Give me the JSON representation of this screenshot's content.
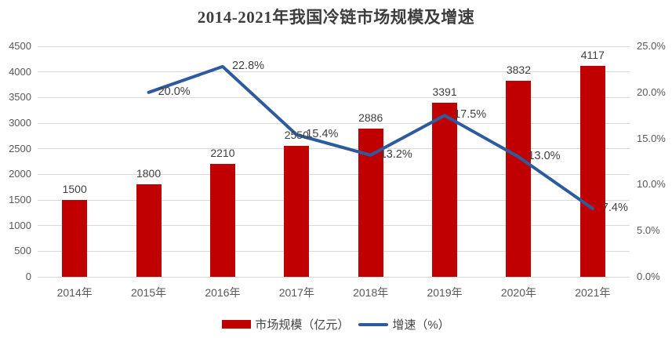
{
  "title": "2014-2021年我国冷链市场规模及增速",
  "colors": {
    "bar": "#c00000",
    "line": "#2e5b9e",
    "gridline": "#d9d9d9",
    "axis_text": "#595959",
    "label_text": "#404040",
    "title_text": "#3d3d3d",
    "background": "#ffffff"
  },
  "legend": {
    "position": "bottom",
    "items": [
      {
        "label": "市场规模（亿元）",
        "marker": "bar-swatch",
        "color": "#c00000"
      },
      {
        "label": "增速（%）",
        "marker": "line-swatch",
        "color": "#2e5b9e"
      }
    ]
  },
  "chart_data": {
    "type": "bar+line combo",
    "title": "2014-2021年我国冷链市场规模及增速",
    "categories": [
      "2014年",
      "2015年",
      "2016年",
      "2017年",
      "2018年",
      "2019年",
      "2020年",
      "2021年"
    ],
    "series": [
      {
        "name": "市场规模（亿元）",
        "type": "bar",
        "axis": "left",
        "color": "#c00000",
        "values": [
          1500,
          1800,
          2210,
          2550,
          2886,
          3391,
          3832,
          4117
        ],
        "labels": [
          "1500",
          "1800",
          "2210",
          "2550",
          "2886",
          "3391",
          "3832",
          "4117"
        ]
      },
      {
        "name": "增速（%）",
        "type": "line",
        "axis": "right",
        "color": "#2e5b9e",
        "values": [
          null,
          20.0,
          22.8,
          15.4,
          13.2,
          17.5,
          13.0,
          7.4
        ],
        "labels": [
          null,
          "20.0%",
          "22.8%",
          "15.4%",
          "13.2%",
          "17.5%",
          "13.0%",
          "7.4%"
        ]
      }
    ],
    "left_axis": {
      "min": 0,
      "max": 4500,
      "step": 500,
      "ticks": [
        "0",
        "500",
        "1000",
        "1500",
        "2000",
        "2500",
        "3000",
        "3500",
        "4000",
        "4500"
      ]
    },
    "right_axis": {
      "min": 0,
      "max": 25,
      "step": 5,
      "ticks": [
        "0.0%",
        "5.0%",
        "10.0%",
        "15.0%",
        "20.0%",
        "25.0%"
      ]
    },
    "grid": true,
    "legend_position": "bottom"
  }
}
